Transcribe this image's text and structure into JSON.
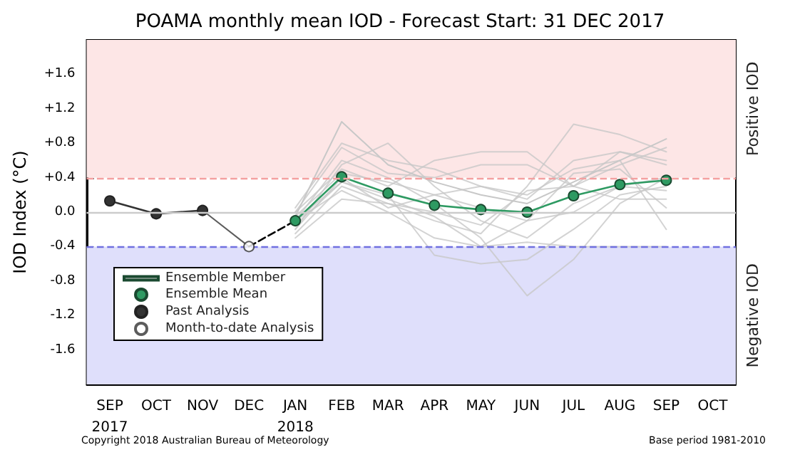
{
  "chart_data": {
    "type": "line",
    "title": "POAMA monthly mean IOD - Forecast Start: 31 DEC 2017",
    "ylabel": "IOD Index (°C)",
    "categories": [
      "SEP\n2017",
      "OCT",
      "NOV",
      "DEC",
      "JAN\n2018",
      "FEB",
      "MAR",
      "APR",
      "MAY",
      "JUN",
      "JUL",
      "AUG",
      "SEP",
      "OCT"
    ],
    "ylim": [
      -2.0,
      2.0
    ],
    "yticks": [
      {
        "value": -2.0,
        "label": null
      },
      -1.6,
      -1.2,
      -0.8,
      -0.4,
      {
        "value": 0.0,
        "label": "0.0"
      },
      {
        "value": 0.4,
        "label": "+0.4"
      },
      {
        "value": 0.8,
        "label": "+0.8"
      },
      {
        "value": 1.2,
        "label": "+1.2"
      },
      {
        "value": 1.6,
        "label": "+1.6"
      },
      {
        "value": 2.0,
        "label": null
      }
    ],
    "bands": [
      {
        "axis": "y",
        "from": 0.4,
        "to": 2.0,
        "label": "Positive IOD",
        "color": "#fde6e6"
      },
      {
        "axis": "y",
        "from": -2.0,
        "to": -0.4,
        "label": "Negative IOD",
        "color": "#dfdffb"
      }
    ],
    "ref_lines": [
      {
        "axis": "y",
        "value": 0.4,
        "color": "#f4a0a0",
        "line_style": "dashed"
      },
      {
        "axis": "y",
        "value": -0.4,
        "color": "#7070e0",
        "line_style": "dashed"
      },
      {
        "axis": "y",
        "value": 0.0,
        "color": "#cccccc",
        "line_style": "solid"
      }
    ],
    "legend": "bottom left",
    "series": [
      {
        "name": "Ensemble Member",
        "color": "#c8c8c8",
        "marker": "none",
        "values": [
          null,
          null,
          null,
          null,
          -0.05,
          1.05,
          0.55,
          0.35,
          0.2,
          0.1,
          0.35,
          0.6,
          0.85,
          null
        ]
      },
      {
        "color": "#c8c8c8",
        "marker": "none",
        "values": [
          null,
          null,
          null,
          null,
          0.0,
          0.75,
          0.45,
          0.4,
          0.55,
          0.55,
          0.3,
          0.55,
          0.75,
          null
        ]
      },
      {
        "color": "#c8c8c8",
        "marker": "none",
        "values": [
          null,
          null,
          null,
          null,
          -0.2,
          0.55,
          0.8,
          0.3,
          -0.1,
          -0.3,
          0.1,
          0.3,
          0.4,
          null
        ]
      },
      {
        "color": "#c8c8c8",
        "marker": "none",
        "values": [
          null,
          null,
          null,
          null,
          -0.15,
          0.35,
          0.2,
          -0.5,
          -0.6,
          -0.55,
          -0.2,
          0.2,
          0.3,
          null
        ]
      },
      {
        "color": "#c8c8c8",
        "marker": "none",
        "values": [
          null,
          null,
          null,
          null,
          -0.1,
          0.6,
          0.4,
          0.1,
          -0.3,
          -0.97,
          -0.55,
          0.1,
          0.4,
          null
        ]
      },
      {
        "color": "#c8c8c8",
        "marker": "none",
        "values": [
          null,
          null,
          null,
          null,
          0.0,
          0.5,
          0.3,
          0.6,
          0.7,
          0.7,
          0.3,
          0.7,
          0.6,
          null
        ]
      },
      {
        "color": "#c8c8c8",
        "marker": "none",
        "values": [
          null,
          null,
          null,
          null,
          -0.25,
          0.3,
          0.1,
          -0.1,
          -0.25,
          0.3,
          1.02,
          0.9,
          0.7,
          null
        ]
      },
      {
        "color": "#c8c8c8",
        "marker": "none",
        "values": [
          null,
          null,
          null,
          null,
          -0.05,
          0.45,
          0.35,
          0.2,
          0.05,
          -0.1,
          0.45,
          0.5,
          0.05,
          null
        ]
      },
      {
        "color": "#c8c8c8",
        "marker": "none",
        "values": [
          null,
          null,
          null,
          null,
          -0.1,
          0.25,
          0.0,
          -0.3,
          -0.4,
          -0.35,
          -0.4,
          -0.4,
          -0.4,
          null
        ]
      },
      {
        "color": "#c8c8c8",
        "marker": "none",
        "values": [
          null,
          null,
          null,
          null,
          -0.2,
          0.4,
          0.05,
          0.2,
          0.3,
          0.2,
          0.5,
          0.6,
          -0.2,
          null
        ]
      },
      {
        "color": "#c8c8c8",
        "marker": "none",
        "values": [
          null,
          null,
          null,
          null,
          0.05,
          0.8,
          0.6,
          0.5,
          0.3,
          0.15,
          0.6,
          0.7,
          0.55,
          null
        ]
      },
      {
        "color": "#c8c8c8",
        "marker": "none",
        "values": [
          null,
          null,
          null,
          null,
          -0.1,
          0.35,
          0.15,
          -0.05,
          -0.4,
          -0.1,
          0.0,
          0.3,
          0.25,
          null
        ]
      },
      {
        "color": "#c8c8c8",
        "marker": "none",
        "values": [
          null,
          null,
          null,
          null,
          -0.3,
          0.15,
          0.1,
          0.0,
          -0.15,
          0.25,
          0.3,
          0.15,
          0.15,
          null
        ]
      },
      {
        "name": "Ensemble Mean",
        "color": "#2e9a62",
        "marker": "circle",
        "values": [
          null,
          null,
          null,
          null,
          -0.1,
          0.41,
          0.22,
          0.08,
          0.03,
          0.0,
          0.19,
          0.32,
          0.37,
          null
        ]
      },
      {
        "name": "Past Analysis",
        "color": "#333333",
        "marker": "circle",
        "values": [
          0.13,
          -0.02,
          0.02,
          null,
          null,
          null,
          null,
          null,
          null,
          null,
          null,
          null,
          null,
          null
        ]
      },
      {
        "color": "#333333",
        "values": [
          null,
          null,
          0.02,
          -0.4,
          null,
          null,
          null,
          null,
          null,
          null,
          null,
          null,
          null,
          null
        ]
      },
      {
        "color": "#000000",
        "marker": "none",
        "line_style": "dashed",
        "values": [
          null,
          null,
          null,
          -0.4,
          -0.1,
          null,
          null,
          null,
          null,
          null,
          null,
          null,
          null,
          null
        ]
      },
      {
        "name": "Month-to-date Analysis",
        "type": "scatter",
        "color": "#ffffff",
        "marker": "circle",
        "values": [
          null,
          null,
          null,
          -0.4,
          null,
          null,
          null,
          null,
          null,
          null,
          null,
          null,
          null,
          null
        ]
      }
    ],
    "annotations": [
      "Copyright 2018 Australian Bureau of Meteorology",
      "Base period 1981-2010"
    ]
  }
}
